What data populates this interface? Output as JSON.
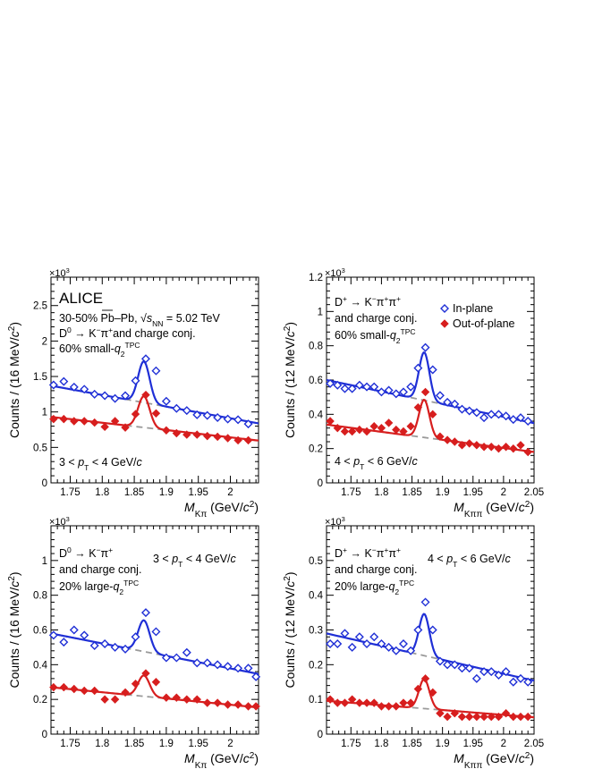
{
  "figure": {
    "colors": {
      "in_plane": "#1f2fd6",
      "out_of_plane": "#d71e1e",
      "background": "#9a9a9a",
      "axis": "#000000"
    },
    "legend": {
      "in_plane": "In-plane",
      "out_of_plane": "Out-of-plane",
      "placement": "top-right of panel 2"
    }
  },
  "chart_data": [
    {
      "id": "p1",
      "type": "scatter",
      "ylabel": "Counts / (16 MeV/c²)",
      "xlabel": "M_Kπ (GeV/c²)",
      "xlabel_main": "M",
      "xlabel_sub": "Kπ",
      "xlabel_unit": " (GeV/c²)",
      "multiplier": "×10³",
      "xlim": [
        1.72,
        2.044
      ],
      "ylim": [
        0,
        2.9
      ],
      "xticks": [
        "1.75",
        "1.8",
        "1.85",
        "1.9",
        "1.95",
        "2"
      ],
      "xtick_values": [
        1.75,
        1.8,
        1.85,
        1.9,
        1.95,
        2.0
      ],
      "yticks": [
        "0",
        "0.5",
        "1",
        "1.5",
        "2",
        "2.5"
      ],
      "ytick_values": [
        0,
        0.5,
        1,
        1.5,
        2,
        2.5
      ],
      "annotations": {
        "brand": "ALICE",
        "system": "30-50% Pb–Pb, √s_NN = 5.02 TeV",
        "decay": "D⁰ → K⁻π⁺ and charge conj.",
        "selection": "60% small-q₂^TPC",
        "pt_range": "3 < p_T < 4 GeV/c"
      },
      "series": [
        {
          "name": "In-plane",
          "x": [
            1.724,
            1.74,
            1.756,
            1.772,
            1.788,
            1.804,
            1.82,
            1.836,
            1.852,
            1.868,
            1.884,
            1.9,
            1.916,
            1.932,
            1.948,
            1.964,
            1.98,
            1.996,
            2.012,
            2.028
          ],
          "y": [
            1.38,
            1.43,
            1.35,
            1.32,
            1.25,
            1.23,
            1.19,
            1.23,
            1.44,
            1.75,
            1.58,
            1.15,
            1.05,
            1.02,
            0.96,
            0.95,
            0.92,
            0.9,
            0.89,
            0.83
          ],
          "fit": {
            "bkg_a": 1.37,
            "bkg_b": -1.64,
            "amp": 0.58,
            "mean": 1.865,
            "sigma": 0.009
          }
        },
        {
          "name": "Out-of-plane",
          "x": [
            1.724,
            1.74,
            1.756,
            1.772,
            1.788,
            1.804,
            1.82,
            1.836,
            1.852,
            1.868,
            1.884,
            1.9,
            1.916,
            1.932,
            1.948,
            1.964,
            1.98,
            1.996,
            2.012,
            2.028
          ],
          "y": [
            0.9,
            0.9,
            0.87,
            0.87,
            0.85,
            0.79,
            0.87,
            0.78,
            0.97,
            1.24,
            0.98,
            0.74,
            0.7,
            0.68,
            0.68,
            0.66,
            0.65,
            0.63,
            0.6,
            0.6
          ],
          "fit": {
            "bkg_a": 0.93,
            "bkg_b": -1.03,
            "amp": 0.44,
            "mean": 1.865,
            "sigma": 0.009
          }
        }
      ]
    },
    {
      "id": "p2",
      "type": "scatter",
      "ylabel": "Counts / (12 MeV/c²)",
      "xlabel": "M_Kππ (GeV/c²)",
      "xlabel_main": "M",
      "xlabel_sub": "Kππ",
      "xlabel_unit": " (GeV/c²)",
      "multiplier": "×10³",
      "xlim": [
        1.71,
        2.05
      ],
      "ylim": [
        0,
        1.2
      ],
      "xticks": [
        "1.75",
        "1.8",
        "1.85",
        "1.9",
        "1.95",
        "2",
        "2.05"
      ],
      "xtick_values": [
        1.75,
        1.8,
        1.85,
        1.9,
        1.95,
        2.0,
        2.05
      ],
      "yticks": [
        "0",
        "0.2",
        "0.4",
        "0.6",
        "0.8",
        "1",
        "1.2"
      ],
      "ytick_values": [
        0,
        0.2,
        0.4,
        0.6,
        0.8,
        1.0,
        1.2
      ],
      "annotations": {
        "decay": "D⁺ → K⁻π⁺π⁺",
        "decay2": "and charge conj.",
        "selection": "60% small-q₂^TPC",
        "pt_range": "4 < p_T < 6 GeV/c"
      },
      "series": [
        {
          "name": "In-plane",
          "x": [
            1.716,
            1.728,
            1.74,
            1.752,
            1.764,
            1.776,
            1.788,
            1.8,
            1.812,
            1.824,
            1.836,
            1.848,
            1.86,
            1.872,
            1.884,
            1.896,
            1.908,
            1.92,
            1.932,
            1.944,
            1.956,
            1.968,
            1.98,
            1.992,
            2.004,
            2.016,
            2.028,
            2.04
          ],
          "y": [
            0.58,
            0.57,
            0.55,
            0.55,
            0.57,
            0.56,
            0.56,
            0.53,
            0.54,
            0.52,
            0.53,
            0.56,
            0.67,
            0.79,
            0.66,
            0.51,
            0.47,
            0.46,
            0.43,
            0.42,
            0.41,
            0.38,
            0.4,
            0.4,
            0.39,
            0.37,
            0.38,
            0.36
          ],
          "fit": {
            "bkg_a": 0.6,
            "bkg_b": -0.74,
            "amp": 0.28,
            "mean": 1.87,
            "sigma": 0.0085
          }
        },
        {
          "name": "Out-of-plane",
          "x": [
            1.716,
            1.728,
            1.74,
            1.752,
            1.764,
            1.776,
            1.788,
            1.8,
            1.812,
            1.824,
            1.836,
            1.848,
            1.86,
            1.872,
            1.884,
            1.896,
            1.908,
            1.92,
            1.932,
            1.944,
            1.956,
            1.968,
            1.98,
            1.992,
            2.004,
            2.016,
            2.028,
            2.04
          ],
          "y": [
            0.36,
            0.32,
            0.3,
            0.3,
            0.31,
            0.3,
            0.33,
            0.32,
            0.35,
            0.31,
            0.3,
            0.33,
            0.44,
            0.53,
            0.4,
            0.27,
            0.25,
            0.24,
            0.22,
            0.23,
            0.22,
            0.21,
            0.21,
            0.2,
            0.21,
            0.2,
            0.22,
            0.18
          ],
          "fit": {
            "bkg_a": 0.34,
            "bkg_b": -0.47,
            "amp": 0.22,
            "mean": 1.87,
            "sigma": 0.0085
          }
        }
      ]
    },
    {
      "id": "p3",
      "type": "scatter",
      "ylabel": "Counts / (16 MeV/c²)",
      "xlabel": "M_Kπ (GeV/c²)",
      "xlabel_main": "M",
      "xlabel_sub": "Kπ",
      "xlabel_unit": " (GeV/c²)",
      "multiplier": "×10³",
      "xlim": [
        1.72,
        2.044
      ],
      "ylim": [
        0,
        1.2
      ],
      "xticks": [
        "1.75",
        "1.8",
        "1.85",
        "1.9",
        "1.95",
        "2"
      ],
      "xtick_values": [
        1.75,
        1.8,
        1.85,
        1.9,
        1.95,
        2.0
      ],
      "yticks": [
        "0",
        "0.2",
        "0.4",
        "0.6",
        "0.8",
        "1"
      ],
      "ytick_values": [
        0,
        0.2,
        0.4,
        0.6,
        0.8,
        1.0
      ],
      "annotations": {
        "decay": "D⁰ → K⁻π⁺",
        "decay2": "and charge conj.",
        "selection": "20% large-q₂^TPC",
        "pt_range": "3 < p_T < 4 GeV/c"
      },
      "series": [
        {
          "name": "In-plane",
          "x": [
            1.724,
            1.74,
            1.756,
            1.772,
            1.788,
            1.804,
            1.82,
            1.836,
            1.852,
            1.868,
            1.884,
            1.9,
            1.916,
            1.932,
            1.948,
            1.964,
            1.98,
            1.996,
            2.012,
            2.028,
            2.04
          ],
          "y": [
            0.57,
            0.53,
            0.6,
            0.57,
            0.51,
            0.52,
            0.5,
            0.49,
            0.56,
            0.7,
            0.59,
            0.44,
            0.44,
            0.47,
            0.41,
            0.41,
            0.4,
            0.39,
            0.38,
            0.38,
            0.33
          ],
          "fit": {
            "bkg_a": 0.58,
            "bkg_b": -0.72,
            "amp": 0.18,
            "mean": 1.865,
            "sigma": 0.009
          }
        },
        {
          "name": "Out-of-plane",
          "x": [
            1.724,
            1.74,
            1.756,
            1.772,
            1.788,
            1.804,
            1.82,
            1.836,
            1.852,
            1.868,
            1.884,
            1.9,
            1.916,
            1.932,
            1.948,
            1.964,
            1.98,
            1.996,
            2.012,
            2.028,
            2.04
          ],
          "y": [
            0.27,
            0.27,
            0.26,
            0.25,
            0.25,
            0.2,
            0.2,
            0.24,
            0.29,
            0.35,
            0.3,
            0.21,
            0.21,
            0.2,
            0.2,
            0.18,
            0.18,
            0.17,
            0.17,
            0.16,
            0.16
          ],
          "fit": {
            "bkg_a": 0.27,
            "bkg_b": -0.36,
            "amp": 0.12,
            "mean": 1.865,
            "sigma": 0.009
          }
        }
      ]
    },
    {
      "id": "p4",
      "type": "scatter",
      "ylabel": "Counts / (12 MeV/c²)",
      "xlabel": "M_Kππ (GeV/c²)",
      "xlabel_main": "M",
      "xlabel_sub": "Kππ",
      "xlabel_unit": " (GeV/c²)",
      "multiplier": "×10³",
      "xlim": [
        1.71,
        2.05
      ],
      "ylim": [
        0,
        0.6
      ],
      "xticks": [
        "1.75",
        "1.8",
        "1.85",
        "1.9",
        "1.95",
        "2",
        "2.05"
      ],
      "xtick_values": [
        1.75,
        1.8,
        1.85,
        1.9,
        1.95,
        2.0,
        2.05
      ],
      "yticks": [
        "0",
        "0.1",
        "0.2",
        "0.3",
        "0.4",
        "0.5"
      ],
      "ytick_values": [
        0,
        0.1,
        0.2,
        0.3,
        0.4,
        0.5
      ],
      "annotations": {
        "decay": "D⁺ → K⁻π⁺π⁺",
        "decay2": "and charge conj.",
        "selection": "20% large-q₂^TPC",
        "pt_range": "4 < p_T < 6 GeV/c"
      },
      "series": [
        {
          "name": "In-plane",
          "x": [
            1.716,
            1.728,
            1.74,
            1.752,
            1.764,
            1.776,
            1.788,
            1.8,
            1.812,
            1.824,
            1.836,
            1.848,
            1.86,
            1.872,
            1.884,
            1.896,
            1.908,
            1.92,
            1.932,
            1.944,
            1.956,
            1.968,
            1.98,
            1.992,
            2.004,
            2.016,
            2.028,
            2.04
          ],
          "y": [
            0.26,
            0.26,
            0.29,
            0.25,
            0.28,
            0.26,
            0.28,
            0.26,
            0.25,
            0.24,
            0.26,
            0.24,
            0.3,
            0.38,
            0.3,
            0.21,
            0.2,
            0.2,
            0.19,
            0.19,
            0.16,
            0.18,
            0.18,
            0.17,
            0.18,
            0.15,
            0.16,
            0.15
          ],
          "fit": {
            "bkg_a": 0.29,
            "bkg_b": -0.4,
            "amp": 0.12,
            "mean": 1.87,
            "sigma": 0.0085
          }
        },
        {
          "name": "Out-of-plane",
          "x": [
            1.716,
            1.728,
            1.74,
            1.752,
            1.764,
            1.776,
            1.788,
            1.8,
            1.812,
            1.824,
            1.836,
            1.848,
            1.86,
            1.872,
            1.884,
            1.896,
            1.908,
            1.92,
            1.932,
            1.944,
            1.956,
            1.968,
            1.98,
            1.992,
            2.004,
            2.016,
            2.028,
            2.04
          ],
          "y": [
            0.1,
            0.09,
            0.09,
            0.1,
            0.09,
            0.09,
            0.09,
            0.08,
            0.08,
            0.08,
            0.09,
            0.09,
            0.13,
            0.16,
            0.12,
            0.06,
            0.05,
            0.06,
            0.05,
            0.05,
            0.05,
            0.05,
            0.05,
            0.05,
            0.06,
            0.05,
            0.05,
            0.05
          ],
          "fit": {
            "bkg_a": 0.096,
            "bkg_b": -0.14,
            "amp": 0.085,
            "mean": 1.87,
            "sigma": 0.0085
          }
        }
      ]
    }
  ]
}
